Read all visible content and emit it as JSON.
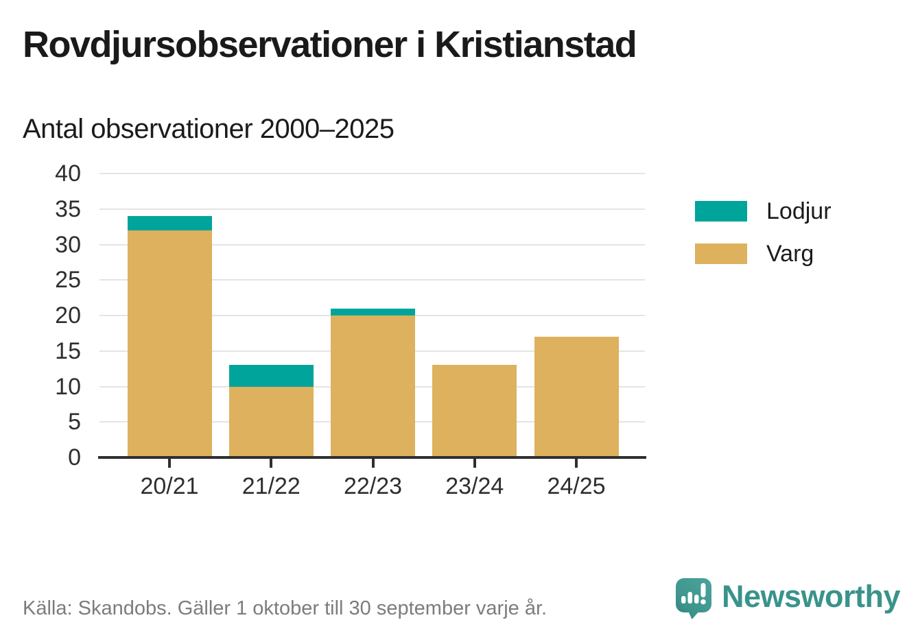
{
  "chart_data": {
    "type": "bar",
    "stacked": true,
    "title": "Rovdjursobservationer i Kristianstad",
    "subtitle": "Antal observationer 2000–2025",
    "categories": [
      "20/21",
      "21/22",
      "22/23",
      "23/24",
      "24/25"
    ],
    "series": [
      {
        "name": "Varg",
        "color": "#ddb15d",
        "values": [
          32,
          10,
          20,
          13,
          17
        ]
      },
      {
        "name": "Lodjur",
        "color": "#00a49a",
        "values": [
          2,
          3,
          1,
          0,
          0
        ]
      }
    ],
    "totals": [
      34,
      13,
      21,
      13,
      17
    ],
    "legend": [
      {
        "label": "Lodjur",
        "color": "#00a49a"
      },
      {
        "label": "Varg",
        "color": "#ddb15d"
      }
    ],
    "legend_position": "right",
    "xlabel": "",
    "ylabel": "",
    "ylim": [
      0,
      40
    ],
    "yticks": [
      0,
      5,
      10,
      15,
      20,
      25,
      30,
      35,
      40
    ],
    "grid": true
  },
  "footer": {
    "source": "Källa: Skandobs. Gäller 1 oktober till 30 september varje år.",
    "brand": "Newsworthy",
    "brand_color": "#39938b"
  },
  "icons": {
    "brand_logo": "newsworthy-speech-bubble-chart-icon"
  }
}
